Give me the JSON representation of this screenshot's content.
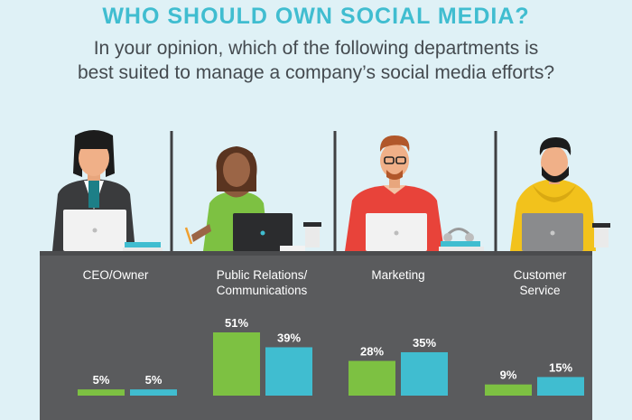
{
  "header": {
    "title": "WHO SHOULD OWN SOCIAL MEDIA?",
    "subtitle_line1": "In your opinion, which of the following departments is",
    "subtitle_line2": "best suited to manage a company’s social media efforts?"
  },
  "colors": {
    "title": "#40bdd0",
    "background": "#dff1f6",
    "desk": "#5a5b5d",
    "series_green": "#7dc142",
    "series_teal": "#40bdd0"
  },
  "chart_data": {
    "type": "bar",
    "title": "WHO SHOULD OWN SOCIAL MEDIA?",
    "categories": [
      "CEO/Owner",
      "Public Relations/\nCommunications",
      "Marketing",
      "Customer\nService"
    ],
    "series": [
      {
        "values": [
          5,
          51,
          28,
          9
        ],
        "color": "#7dc142"
      },
      {
        "values": [
          5,
          39,
          35,
          15
        ],
        "color": "#40bdd0"
      }
    ],
    "value_suffix": "%",
    "ylim": [
      0,
      51
    ],
    "grid": false
  }
}
